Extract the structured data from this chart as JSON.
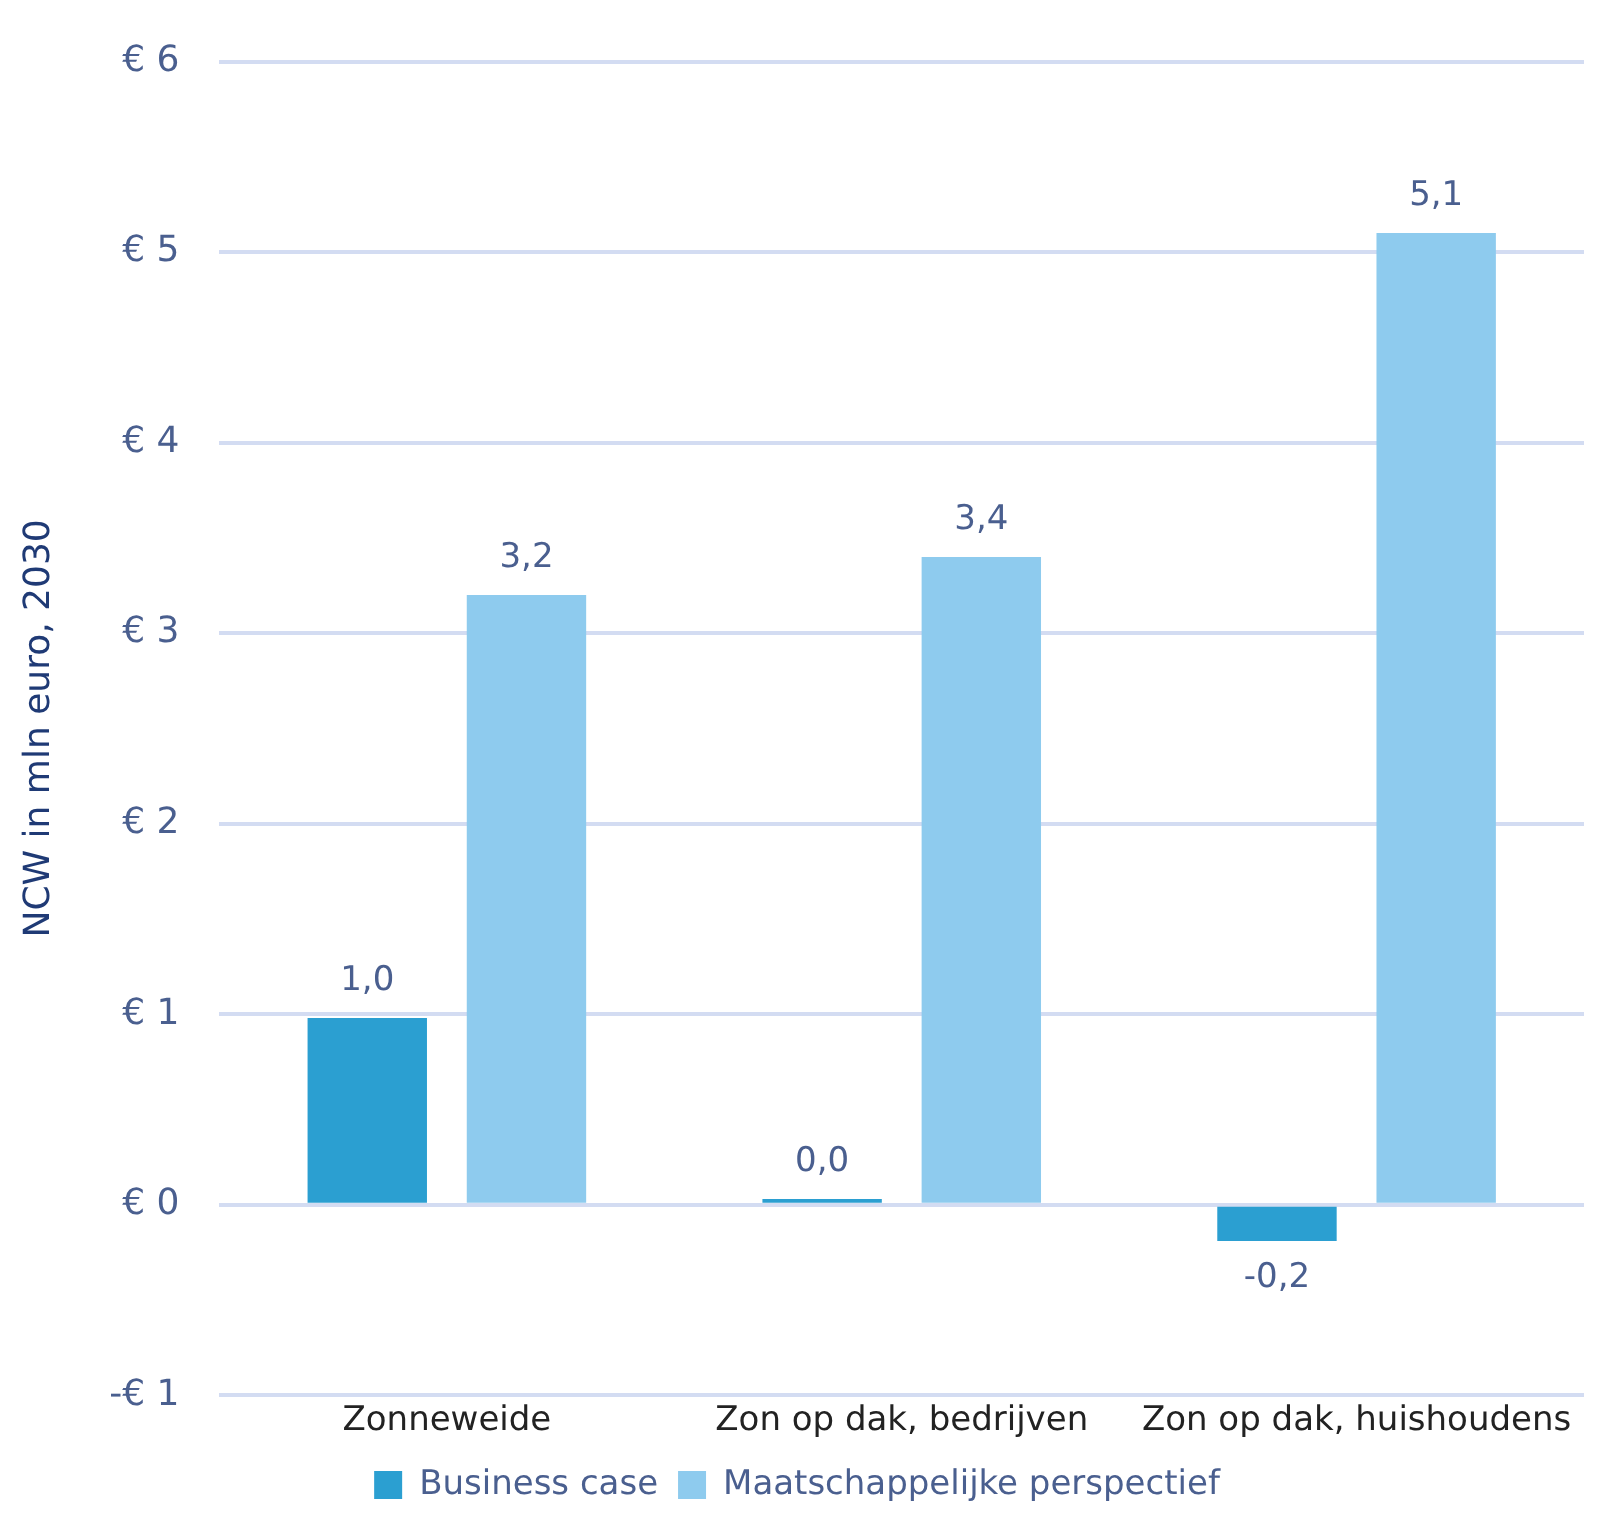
{
  "chart_data": {
    "type": "bar",
    "ylabel": "NCW in mln euro, 2030",
    "categories": [
      "Zonneweide",
      "Zon op dak, bedrijven",
      "Zon op dak, huishoudens"
    ],
    "series": [
      {
        "name": "Business case",
        "color": "#2b9fd1",
        "values": [
          0.98,
          0.03,
          -0.19
        ],
        "value_labels": [
          "1,0",
          "0,0",
          "-0,2"
        ]
      },
      {
        "name": "Maatschappelijke perspectief",
        "color": "#8ecbee",
        "values": [
          3.2,
          3.4,
          5.1
        ],
        "value_labels": [
          "3,2",
          "3,4",
          "5,1"
        ]
      }
    ],
    "ylim": [
      -1,
      6
    ],
    "yticks": [
      {
        "value": -1,
        "label": "-€ 1"
      },
      {
        "value": 0,
        "label": "€ 0"
      },
      {
        "value": 1,
        "label": "€ 1"
      },
      {
        "value": 2,
        "label": "€ 2"
      },
      {
        "value": 3,
        "label": "€ 3"
      },
      {
        "value": 4,
        "label": "€ 4"
      },
      {
        "value": 5,
        "label": "€ 5"
      },
      {
        "value": 6,
        "label": "€ 6"
      }
    ],
    "grid": "y",
    "legend": "bottom"
  }
}
